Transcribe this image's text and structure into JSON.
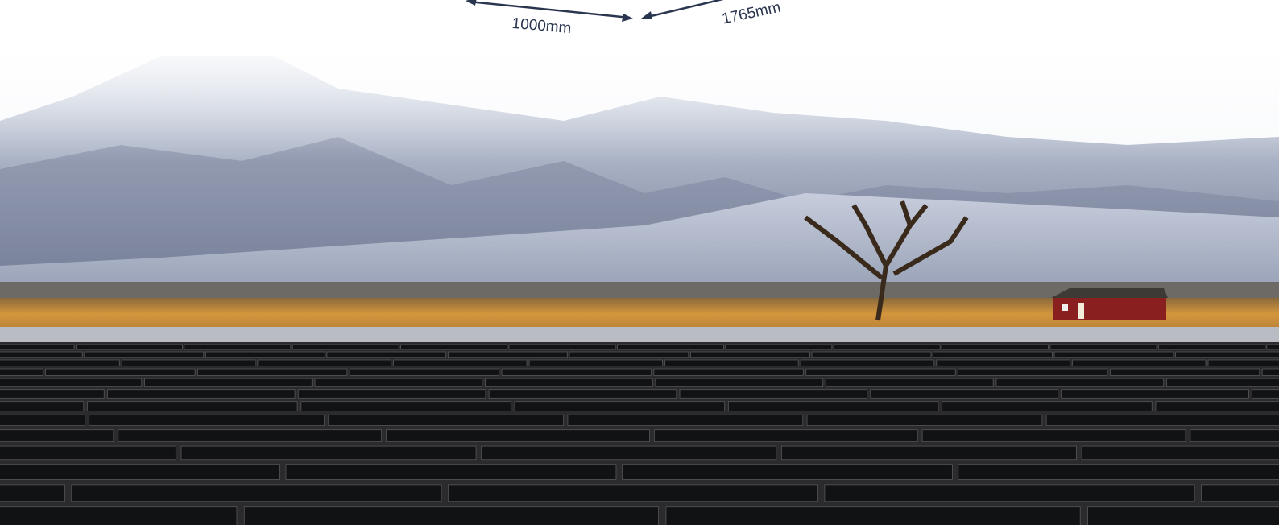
{
  "labels": {
    "width_dimension": "1000mm",
    "height_dimension": "1765mm"
  }
}
